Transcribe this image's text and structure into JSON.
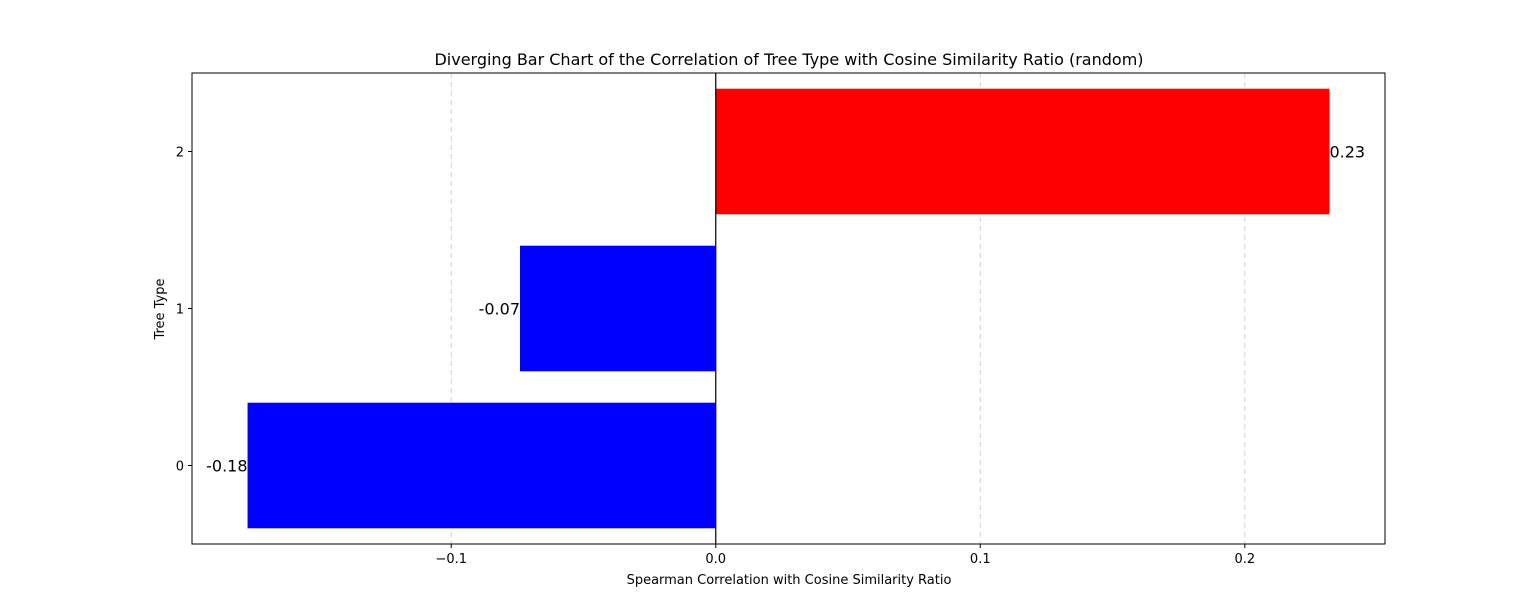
{
  "chart_data": {
    "type": "bar",
    "orientation": "horizontal",
    "title": "Diverging Bar Chart of the Correlation of Tree Type with Cosine Similarity Ratio (random)",
    "xlabel": "Spearman Correlation with Cosine Similarity Ratio",
    "ylabel": "Tree Type",
    "categories": [
      "0",
      "1",
      "2"
    ],
    "values": [
      -0.177,
      -0.074,
      0.232
    ],
    "data_labels": [
      "-0.18",
      "-0.07",
      "0.23"
    ],
    "xlim": [
      -0.198,
      0.253
    ],
    "ylim": [
      -0.5,
      2.5
    ],
    "xticks": [
      -0.1,
      0.0,
      0.1,
      0.2
    ],
    "xtick_labels": [
      "−0.1",
      "0.0",
      "0.1",
      "0.2"
    ],
    "grid": "x-dashed",
    "zero_line": true,
    "colors": {
      "positive": "#ff0000",
      "negative": "#0000ff",
      "grid": "#d3d3d3",
      "axis": "#000000"
    }
  }
}
